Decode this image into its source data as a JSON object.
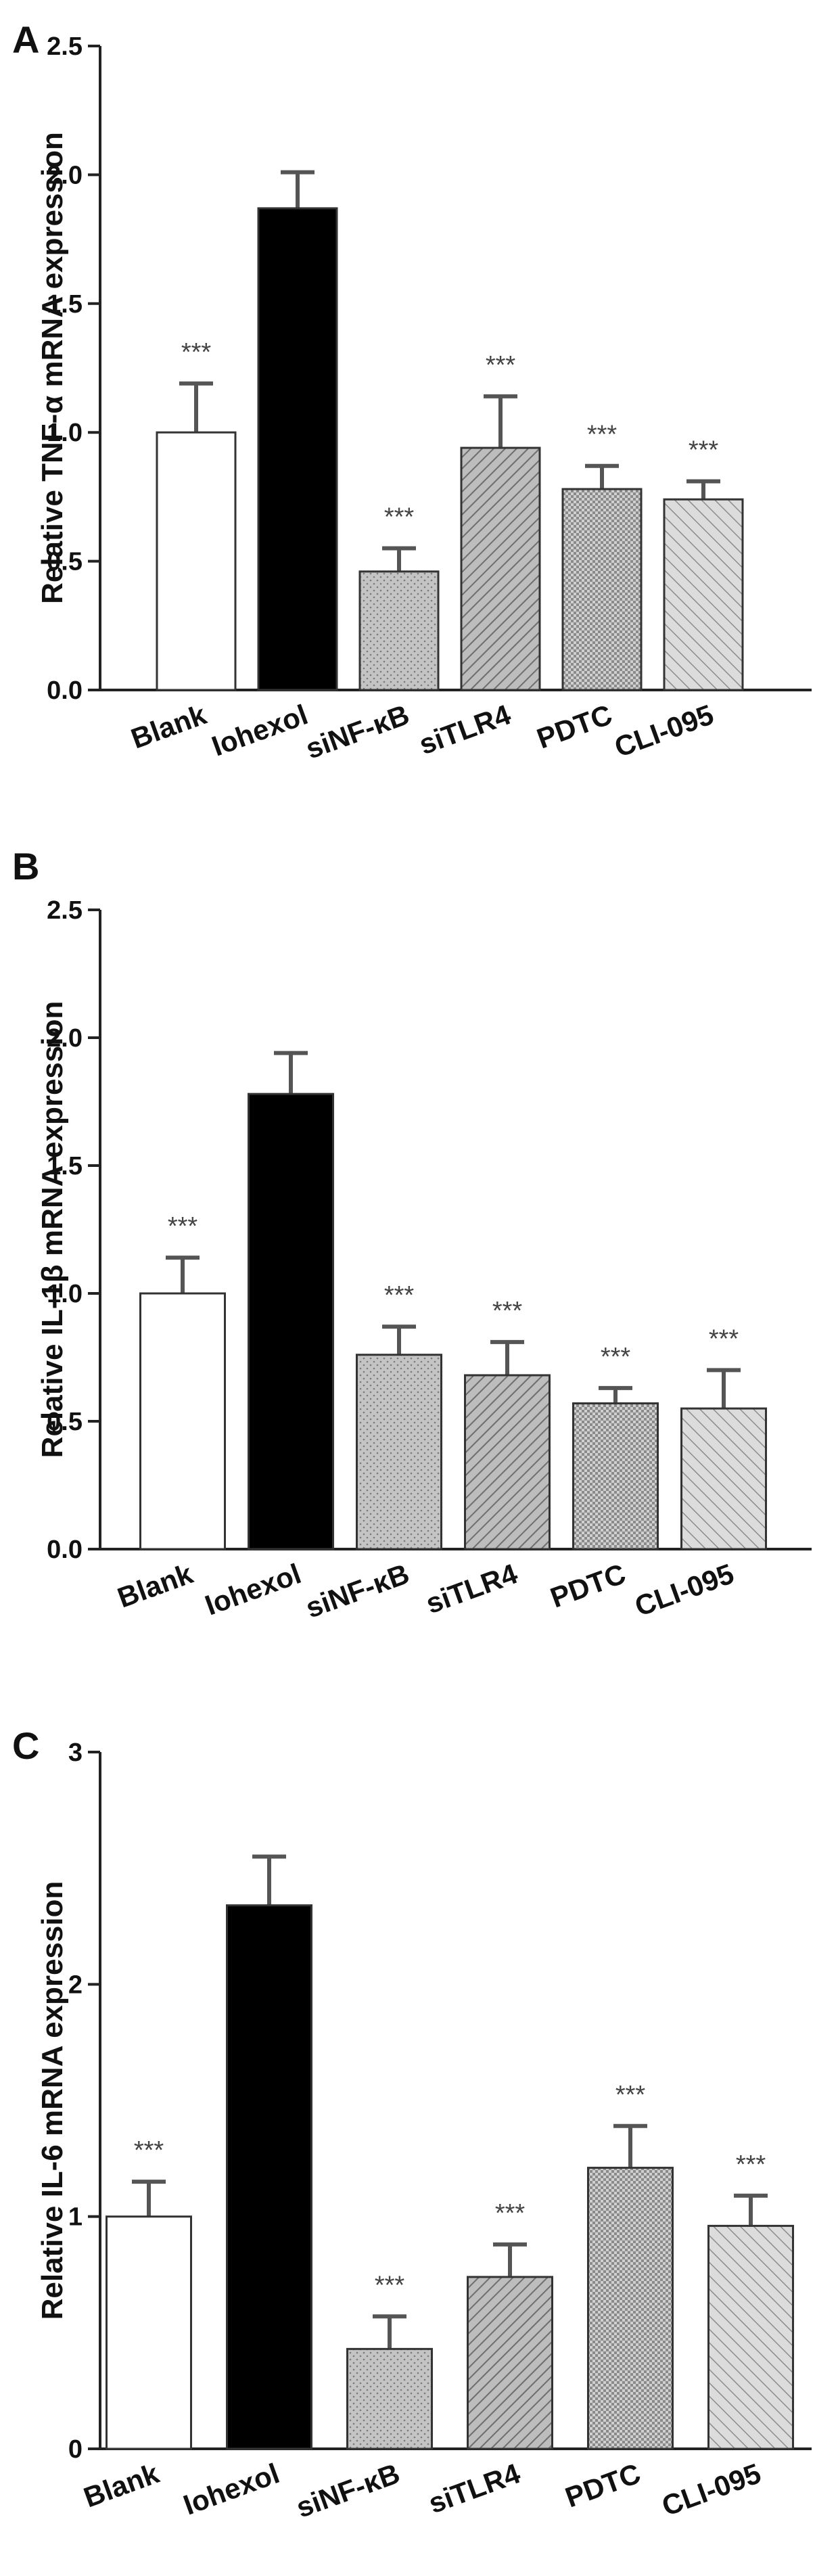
{
  "chart_data": [
    {
      "type": "bar",
      "panel": "A",
      "ylabel": "Relative TNF-α mRNA expression",
      "categories": [
        "Blank",
        "Iohexol",
        "siNF-κB",
        "siTLR4",
        "PDTC",
        "CLI-095"
      ],
      "values": [
        1.0,
        1.87,
        0.46,
        0.94,
        0.78,
        0.74
      ],
      "errors": [
        0.19,
        0.14,
        0.09,
        0.2,
        0.09,
        0.07
      ],
      "significance": [
        "***",
        "",
        "***",
        "***",
        "***",
        "***"
      ],
      "ylim": [
        0,
        2.5
      ],
      "yticks": [
        0,
        0.5,
        1.0,
        1.5,
        2.0,
        2.5
      ],
      "ytick_labels": [
        "0.0",
        "0.5",
        "1.0",
        "1.5",
        "2.0",
        "2.5"
      ]
    },
    {
      "type": "bar",
      "panel": "B",
      "ylabel": "Relative IL-1β mRNA expression",
      "categories": [
        "Blank",
        "Iohexol",
        "siNF-κB",
        "siTLR4",
        "PDTC",
        "CLI-095"
      ],
      "values": [
        1.0,
        1.78,
        0.76,
        0.68,
        0.57,
        0.55
      ],
      "errors": [
        0.14,
        0.16,
        0.11,
        0.13,
        0.06,
        0.15
      ],
      "significance": [
        "***",
        "",
        "***",
        "***",
        "***",
        "***"
      ],
      "ylim": [
        0,
        2.5
      ],
      "yticks": [
        0,
        0.5,
        1.0,
        1.5,
        2.0,
        2.5
      ],
      "ytick_labels": [
        "0.0",
        "0.5",
        "1.0",
        "1.5",
        "2.0",
        "2.5"
      ]
    },
    {
      "type": "bar",
      "panel": "C",
      "ylabel": "Relative IL-6 mRNA expression",
      "categories": [
        "Blank",
        "Iohexol",
        "siNF-κB",
        "siTLR4",
        "PDTC",
        "CLI-095"
      ],
      "values": [
        1.0,
        2.34,
        0.43,
        0.74,
        1.21,
        0.96
      ],
      "errors": [
        0.15,
        0.21,
        0.14,
        0.14,
        0.18,
        0.13
      ],
      "significance": [
        "***",
        "",
        "***",
        "***",
        "***",
        "***"
      ],
      "ylim": [
        0,
        3
      ],
      "yticks": [
        0,
        1,
        2,
        3
      ],
      "ytick_labels": [
        "0",
        "1",
        "2",
        "3"
      ]
    }
  ],
  "colors": {
    "axis": "#222222",
    "bar_outline": "#333333",
    "error_bar": "#555555",
    "blank_fill": "#ffffff",
    "iohexol_fill": "#000000",
    "treated_fill": "#c8c8c8",
    "significance": "#444444"
  },
  "fill_patterns": [
    "none",
    "solid-black",
    "dots",
    "diagonal-forward-dense",
    "crosshatch",
    "diagonal-back-sparse"
  ]
}
